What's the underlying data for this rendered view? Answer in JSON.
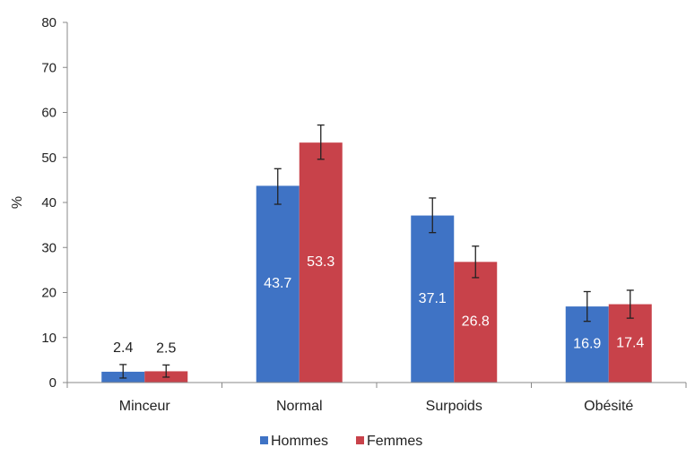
{
  "chart_data": {
    "type": "bar",
    "categories": [
      "Minceur",
      "Normal",
      "Surpoids",
      "Obésité"
    ],
    "series": [
      {
        "name": "Hommes",
        "color": "#3f73c5",
        "values": [
          2.4,
          43.7,
          37.1,
          16.9
        ],
        "error_low": [
          1.0,
          39.6,
          33.3,
          13.6
        ],
        "error_high": [
          4.0,
          47.5,
          41.0,
          20.2
        ],
        "labels": [
          "2.4",
          "43.7",
          "37.1",
          "16.9"
        ]
      },
      {
        "name": "Femmes",
        "color": "#c8424a",
        "values": [
          2.5,
          53.3,
          26.8,
          17.4
        ],
        "error_low": [
          1.2,
          49.6,
          23.3,
          14.3
        ],
        "error_high": [
          3.9,
          57.2,
          30.3,
          20.5
        ],
        "labels": [
          "2.5",
          "53.3",
          "26.8",
          "17.4"
        ]
      }
    ],
    "ylabel": "%",
    "xlabel": "",
    "ylim": [
      0,
      80
    ],
    "yticks": [
      0,
      10,
      20,
      30,
      40,
      50,
      60,
      70,
      80
    ],
    "ytick_labels": [
      "0",
      "10",
      "20",
      "30",
      "40",
      "50",
      "60",
      "70",
      "80"
    ],
    "grid": false,
    "legend": "bottom-center"
  }
}
